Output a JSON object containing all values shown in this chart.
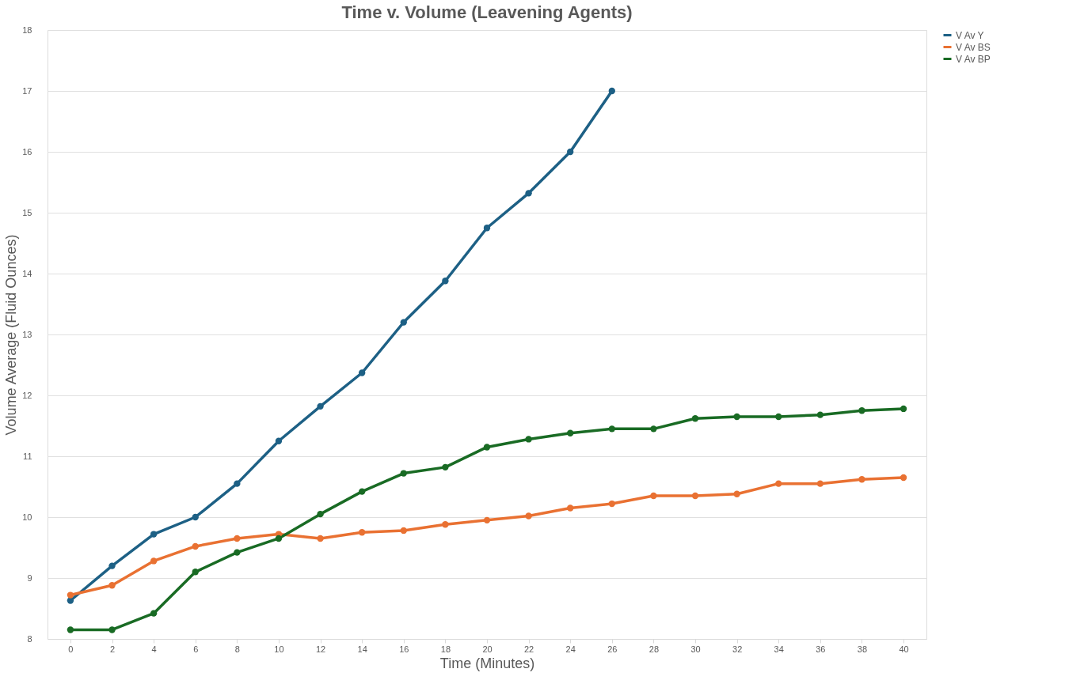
{
  "chart_data": {
    "type": "line",
    "title": "Time v. Volume (Leavening Agents)",
    "xlabel": "Time (Minutes)",
    "ylabel": "Volume Average (Fluid Ounces)",
    "x": [
      0,
      2,
      4,
      6,
      8,
      10,
      12,
      14,
      16,
      18,
      20,
      22,
      24,
      26,
      28,
      30,
      32,
      34,
      36,
      38,
      40
    ],
    "xlim": [
      -1.1,
      41.1
    ],
    "xticks": [
      0,
      2,
      4,
      6,
      8,
      10,
      12,
      14,
      16,
      18,
      20,
      22,
      24,
      26,
      28,
      30,
      32,
      34,
      36,
      38,
      40
    ],
    "ylim": [
      8,
      18
    ],
    "yticks": [
      8,
      9,
      10,
      11,
      12,
      13,
      14,
      15,
      16,
      17,
      18
    ],
    "series": [
      {
        "name": "V Av Y",
        "color": "#1d6085",
        "values": [
          8.63,
          9.2,
          9.72,
          10.0,
          10.55,
          11.25,
          11.82,
          12.37,
          13.2,
          13.88,
          14.75,
          15.32,
          16.0,
          17.0,
          null,
          null,
          null,
          null,
          null,
          null,
          null
        ]
      },
      {
        "name": "V Av BS",
        "color": "#e97132",
        "values": [
          8.72,
          8.88,
          9.28,
          9.52,
          9.65,
          9.72,
          9.65,
          9.75,
          9.78,
          9.88,
          9.95,
          10.02,
          10.15,
          10.22,
          10.35,
          10.35,
          10.38,
          10.55,
          10.55,
          10.62,
          10.65
        ]
      },
      {
        "name": "V Av BP",
        "color": "#196b24",
        "values": [
          8.15,
          8.15,
          8.42,
          9.1,
          9.42,
          9.65,
          10.05,
          10.42,
          10.72,
          10.82,
          11.15,
          11.28,
          11.38,
          11.45,
          11.45,
          11.62,
          11.65,
          11.65,
          11.68,
          11.75,
          11.78
        ]
      }
    ],
    "grid": "y",
    "legend": "right",
    "marker": "circle",
    "line_style": "solid"
  }
}
